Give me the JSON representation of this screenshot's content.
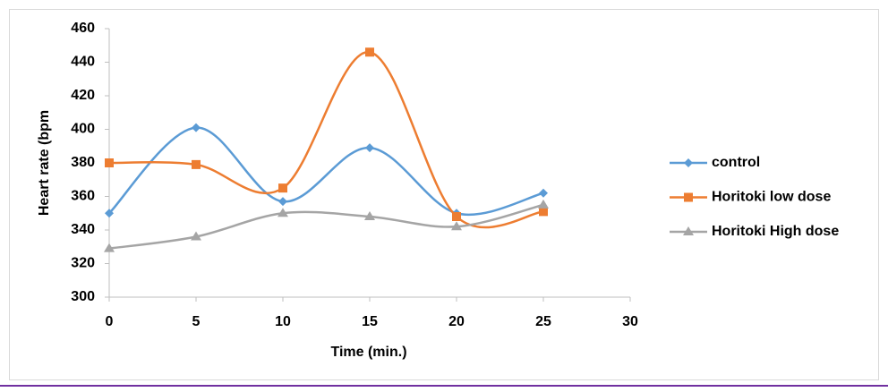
{
  "chart_data": {
    "type": "line",
    "x_label": "Time (min.)",
    "y_label": "Heart rate (bpm",
    "x": [
      0,
      5,
      10,
      15,
      20,
      25
    ],
    "series": [
      {
        "name": "control",
        "color": "#5b9bd5",
        "marker": "diamond",
        "values": [
          350,
          401,
          357,
          389,
          350,
          362
        ]
      },
      {
        "name": "Horitoki low dose",
        "color": "#ed7d31",
        "marker": "square",
        "values": [
          380,
          379,
          365,
          446,
          348,
          351
        ]
      },
      {
        "name": "Horitoki High dose",
        "color": "#a5a5a5",
        "marker": "triangle",
        "values": [
          329,
          336,
          350,
          348,
          342,
          355
        ]
      }
    ],
    "xlim": [
      0,
      30
    ],
    "xticks": [
      0,
      5,
      10,
      15,
      20,
      25,
      30
    ],
    "ylim": [
      300,
      460
    ],
    "yticks": [
      300,
      320,
      340,
      360,
      380,
      400,
      420,
      440,
      460
    ],
    "smooth": true,
    "grid": false,
    "legend": "right"
  }
}
